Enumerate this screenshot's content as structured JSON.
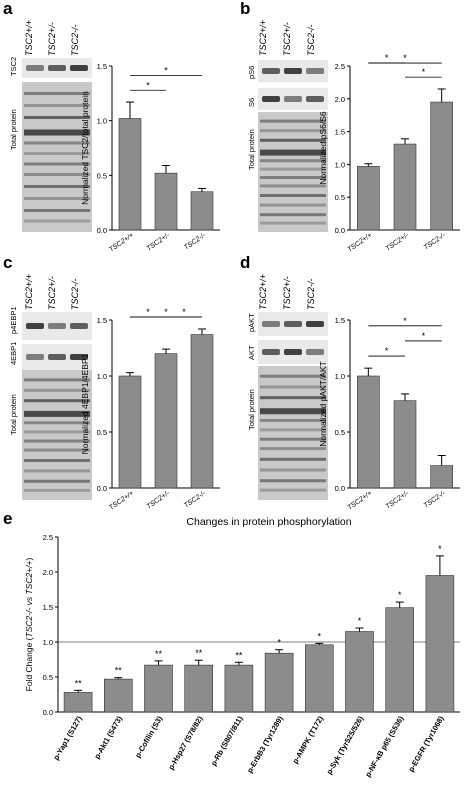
{
  "figure": {
    "panels": [
      {
        "letter": "a",
        "blot_headers": [
          "TSC2+/+",
          "TSC2+/-",
          "TSC2-/-"
        ],
        "strip_labels": [
          "TSC2"
        ],
        "total_label": "Total protein"
      },
      {
        "letter": "b",
        "blot_headers": [
          "TSC2+/+",
          "TSC2+/-",
          "TSC2-/-"
        ],
        "strip_labels": [
          "pS6",
          "S6"
        ],
        "total_label": "Total protein"
      },
      {
        "letter": "c",
        "blot_headers": [
          "TSC2+/+",
          "TSC2+/-",
          "TSC2-/-"
        ],
        "strip_labels": [
          "p4EBP1",
          "4EBP1"
        ],
        "total_label": "Total protein"
      },
      {
        "letter": "d",
        "blot_headers": [
          "TSC2+/+",
          "TSC2+/-",
          "TSC2-/-"
        ],
        "strip_labels": [
          "pAKT",
          "AKT"
        ],
        "total_label": "Total protein"
      }
    ],
    "panel_e_letter": "e",
    "significance_symbol": "*"
  },
  "chart_data": [
    {
      "panel": "a",
      "type": "bar",
      "categories": [
        "TSC2+/+",
        "TSC2+/-",
        "TSC2-/-"
      ],
      "values": [
        1.02,
        0.52,
        0.35
      ],
      "errors": [
        0.15,
        0.07,
        0.03
      ],
      "ylabel": "Normalized TSC2/total protein",
      "ylim": [
        0,
        1.5
      ],
      "yticks": [
        "0.0",
        "0.5",
        "1.0",
        "1.5"
      ],
      "significance": [
        {
          "from": 0,
          "to": 2,
          "label": "*"
        },
        {
          "from": 0,
          "to": 1,
          "label": "*"
        }
      ]
    },
    {
      "panel": "b",
      "type": "bar",
      "categories": [
        "TSC2+/+",
        "TSC2+/-",
        "TSC2-/-"
      ],
      "values": [
        0.97,
        1.31,
        1.95
      ],
      "errors": [
        0.04,
        0.08,
        0.2
      ],
      "ylabel": "Normalized pS6/S6",
      "ylim": [
        0,
        2.5
      ],
      "yticks": [
        "0.0",
        "0.5",
        "1.0",
        "1.5",
        "2.0",
        "2.5"
      ],
      "significance": [
        {
          "from": 1,
          "to": 2,
          "label": "*"
        },
        {
          "from": 0,
          "to": 2,
          "label": "*"
        },
        {
          "from": 0,
          "to": 1,
          "label": "*"
        }
      ]
    },
    {
      "panel": "c",
      "type": "bar",
      "categories": [
        "TSC2+/+",
        "TSC2+/-",
        "TSC2-/-"
      ],
      "values": [
        1.0,
        1.2,
        1.37
      ],
      "errors": [
        0.03,
        0.04,
        0.05
      ],
      "ylabel": "Normalized 4EBP1/4EBP1",
      "ylim": [
        0,
        1.5
      ],
      "yticks": [
        "0.0",
        "0.5",
        "1.0",
        "1.5"
      ],
      "significance": [
        {
          "from": 0,
          "to": 2,
          "label": "*"
        },
        {
          "from": 1,
          "to": 2,
          "label": "*"
        },
        {
          "from": 0,
          "to": 1,
          "label": "*"
        }
      ]
    },
    {
      "panel": "d",
      "type": "bar",
      "categories": [
        "TSC2+/+",
        "TSC2+/-",
        "TSC2-/-"
      ],
      "values": [
        1.0,
        0.78,
        0.2
      ],
      "errors": [
        0.07,
        0.06,
        0.09
      ],
      "ylabel": "Normalized pAKT/AKT",
      "ylim": [
        0,
        1.5
      ],
      "yticks": [
        "0.0",
        "0.5",
        "1.0",
        "1.5"
      ],
      "significance": [
        {
          "from": 0,
          "to": 2,
          "label": "*"
        },
        {
          "from": 0,
          "to": 1,
          "label": "*"
        },
        {
          "from": 1,
          "to": 2,
          "label": "*"
        }
      ]
    },
    {
      "panel": "e",
      "type": "bar",
      "title": "Changes in protein phosphorylation",
      "ylabel_prefix": "Fold Change (",
      "ylabel_italic": "TSC2-/- vs TSC2+/+",
      "ylabel_suffix": ")",
      "categories": [
        "p-Yap1 (S127)",
        "p-Akt1 (S473)",
        "p-Cofilin (S3)",
        "p-Hsp27 (S78/82)",
        "p-Rb (S807/811)",
        "p-ErbB3 (Tyr1289)",
        "p-AMPK (T172)",
        "p-Syk (Tyr525/526)",
        "p-NF-κB p65 (S536)",
        "p-EGFR (Tyr1068)"
      ],
      "values": [
        0.28,
        0.47,
        0.67,
        0.67,
        0.67,
        0.84,
        0.96,
        1.15,
        1.49,
        1.95
      ],
      "errors": [
        0.03,
        0.02,
        0.06,
        0.07,
        0.04,
        0.05,
        0.02,
        0.05,
        0.08,
        0.28
      ],
      "significance_labels": [
        "**",
        "**",
        "**",
        "**",
        "**",
        "*",
        "*",
        "*",
        "*",
        "*"
      ],
      "reference_line": 1.0,
      "ylim": [
        0,
        2.5
      ],
      "yticks": [
        "0.0",
        "0.5",
        "1.0",
        "1.5",
        "2.0",
        "2.5"
      ]
    }
  ]
}
